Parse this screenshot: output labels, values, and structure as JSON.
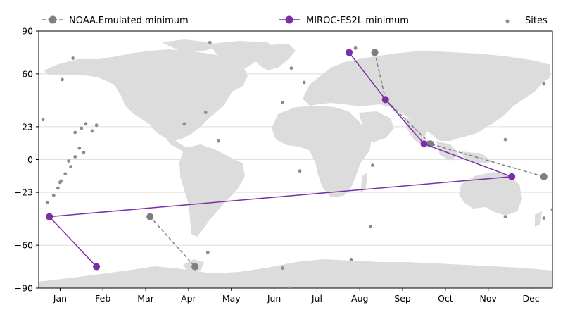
{
  "chart_data": {
    "type": "line",
    "title": "",
    "xlabel": "",
    "ylabel": "",
    "x_tick_labels": [
      "Jan",
      "Feb",
      "Mar",
      "Apr",
      "May",
      "Jun",
      "Jul",
      "Aug",
      "Sep",
      "Oct",
      "Nov",
      "Dec"
    ],
    "y_ticks": [
      90,
      60,
      23,
      0,
      -23,
      -60,
      -90
    ],
    "xlim": [
      0.5,
      12.5
    ],
    "ylim": [
      -90,
      90
    ],
    "grid": "horizontal",
    "legend_position": "top",
    "legend": [
      {
        "label": "NOAA.Emulated minimum",
        "style": "dashed-gray-marker"
      },
      {
        "label": "MIROC-ES2L minimum",
        "style": "solid-purple-marker"
      },
      {
        "label": "Sites",
        "style": "small-gray-dot"
      }
    ],
    "series": [
      {
        "name": "NOAA.Emulated minimum",
        "color": "#7f7f7f",
        "dash": true,
        "segments": [
          [
            [
              3.1,
              -40
            ],
            [
              4.15,
              -75
            ]
          ],
          [
            [
              8.35,
              75
            ],
            [
              8.6,
              42
            ],
            [
              9.65,
              11
            ],
            [
              12.3,
              -12
            ]
          ]
        ]
      },
      {
        "name": "MIROC-ES2L minimum",
        "color": "#7b2fa6",
        "dash": false,
        "segments": [
          [
            [
              0.75,
              -40
            ],
            [
              1.85,
              -75
            ]
          ],
          [
            [
              7.75,
              75
            ],
            [
              8.6,
              42
            ],
            [
              9.5,
              11
            ],
            [
              11.55,
              -12
            ],
            [
              0.75,
              -40
            ]
          ]
        ]
      }
    ],
    "sites": [
      [
        1.3,
        71
      ],
      [
        1.05,
        56
      ],
      [
        0.6,
        28
      ],
      [
        1.35,
        19
      ],
      [
        1.5,
        22
      ],
      [
        1.6,
        25
      ],
      [
        1.75,
        20
      ],
      [
        1.85,
        24
      ],
      [
        1.45,
        8
      ],
      [
        1.55,
        5
      ],
      [
        1.35,
        2
      ],
      [
        1.2,
        -1
      ],
      [
        1.25,
        -5
      ],
      [
        1.12,
        -10
      ],
      [
        1.02,
        -15
      ],
      [
        0.95,
        -20
      ],
      [
        1.0,
        -16
      ],
      [
        0.85,
        -25
      ],
      [
        0.7,
        -30
      ],
      [
        4.5,
        82
      ],
      [
        4.4,
        33
      ],
      [
        3.9,
        25
      ],
      [
        4.7,
        13
      ],
      [
        6.2,
        40
      ],
      [
        6.4,
        64
      ],
      [
        6.7,
        54
      ],
      [
        7.9,
        78
      ],
      [
        6.6,
        -8
      ],
      [
        4.45,
        -65
      ],
      [
        6.2,
        -76
      ],
      [
        6.35,
        -90
      ],
      [
        8.3,
        -4
      ],
      [
        8.25,
        -47
      ],
      [
        7.8,
        -70
      ],
      [
        11.4,
        14
      ],
      [
        11.4,
        -40
      ],
      [
        12.3,
        53
      ],
      [
        12.3,
        -41
      ],
      [
        12.5,
        -35
      ]
    ]
  }
}
